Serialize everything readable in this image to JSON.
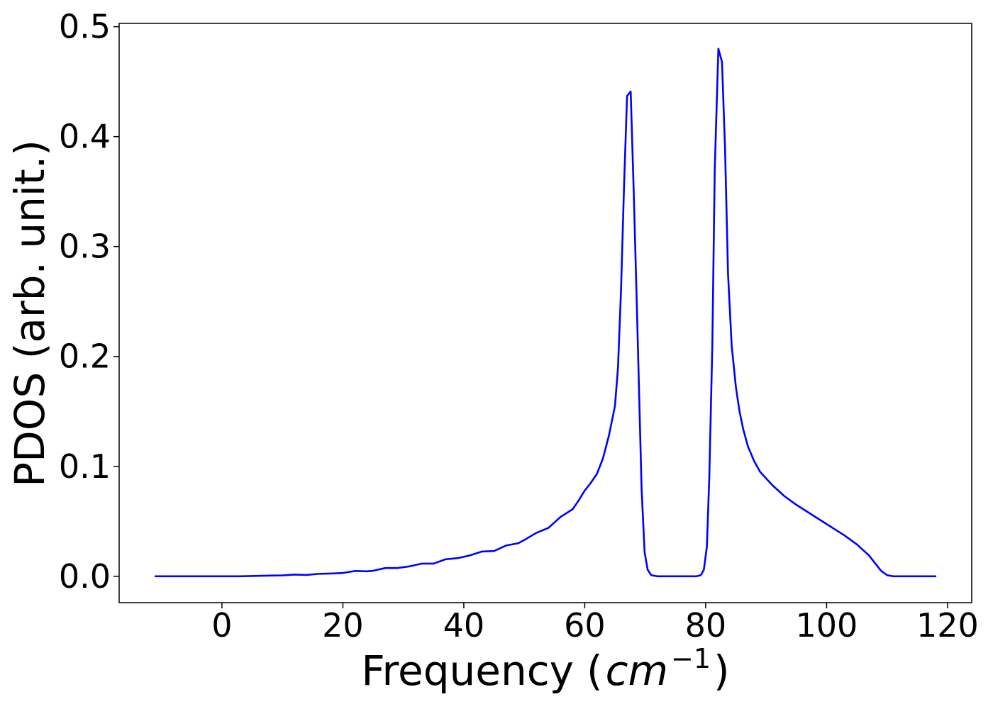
{
  "chart_data": {
    "type": "line",
    "title": "",
    "xlabel": "Frequency",
    "xlabel_unit": {
      "open": "(",
      "base": "cm",
      "superscript": "−1",
      "close": ")"
    },
    "ylabel": "PDOS (arb. unit.)",
    "xlim": [
      -17,
      124
    ],
    "ylim": [
      -0.024,
      0.503
    ],
    "xticks": [
      {
        "value": 0,
        "label": "0"
      },
      {
        "value": 20,
        "label": "20"
      },
      {
        "value": 40,
        "label": "40"
      },
      {
        "value": 60,
        "label": "60"
      },
      {
        "value": 80,
        "label": "80"
      },
      {
        "value": 100,
        "label": "100"
      },
      {
        "value": 120,
        "label": "120"
      }
    ],
    "yticks": [
      {
        "value": 0.0,
        "label": "0.0"
      },
      {
        "value": 0.1,
        "label": "0.1"
      },
      {
        "value": 0.2,
        "label": "0.2"
      },
      {
        "value": 0.3,
        "label": "0.3"
      },
      {
        "value": 0.4,
        "label": "0.4"
      },
      {
        "value": 0.5,
        "label": "0.5"
      }
    ],
    "grid": false,
    "legend": "none",
    "series": [
      {
        "color": "#0000ff",
        "points": [
          [
            -11,
            0.0
          ],
          [
            3,
            0.0
          ],
          [
            8,
            0.0006
          ],
          [
            10,
            0.0008
          ],
          [
            12,
            0.0015
          ],
          [
            14,
            0.0012
          ],
          [
            16,
            0.0022
          ],
          [
            18,
            0.0025
          ],
          [
            20,
            0.003
          ],
          [
            22,
            0.0048
          ],
          [
            24,
            0.0045
          ],
          [
            25,
            0.005
          ],
          [
            27,
            0.0075
          ],
          [
            29,
            0.0075
          ],
          [
            31,
            0.009
          ],
          [
            33,
            0.0115
          ],
          [
            35,
            0.0115
          ],
          [
            37,
            0.0155
          ],
          [
            39,
            0.0165
          ],
          [
            41,
            0.019
          ],
          [
            43,
            0.0225
          ],
          [
            45,
            0.023
          ],
          [
            47,
            0.028
          ],
          [
            49,
            0.03
          ],
          [
            50,
            0.033
          ],
          [
            52,
            0.0395
          ],
          [
            54,
            0.044
          ],
          [
            56,
            0.054
          ],
          [
            58,
            0.061
          ],
          [
            59,
            0.069
          ],
          [
            60,
            0.078
          ],
          [
            61,
            0.085
          ],
          [
            62,
            0.093
          ],
          [
            63,
            0.107
          ],
          [
            64,
            0.128
          ],
          [
            65,
            0.155
          ],
          [
            65.5,
            0.19
          ],
          [
            66,
            0.26
          ],
          [
            66.5,
            0.355
          ],
          [
            67,
            0.437
          ],
          [
            67.6,
            0.441
          ],
          [
            68.1,
            0.35
          ],
          [
            68.6,
            0.25
          ],
          [
            69,
            0.165
          ],
          [
            69.4,
            0.08
          ],
          [
            69.9,
            0.022
          ],
          [
            70.4,
            0.006
          ],
          [
            71,
            0.001
          ],
          [
            72,
            0.0
          ],
          [
            78.5,
            0.0
          ],
          [
            79.2,
            0.001
          ],
          [
            79.7,
            0.006
          ],
          [
            80.2,
            0.027
          ],
          [
            80.6,
            0.09
          ],
          [
            81.1,
            0.21
          ],
          [
            81.5,
            0.37
          ],
          [
            82.1,
            0.48
          ],
          [
            82.7,
            0.468
          ],
          [
            83.2,
            0.39
          ],
          [
            83.7,
            0.275
          ],
          [
            84.3,
            0.21
          ],
          [
            85,
            0.172
          ],
          [
            85.6,
            0.15
          ],
          [
            86.2,
            0.134
          ],
          [
            87,
            0.118
          ],
          [
            88,
            0.105
          ],
          [
            89,
            0.095
          ],
          [
            91,
            0.083
          ],
          [
            93,
            0.073
          ],
          [
            95,
            0.065
          ],
          [
            97,
            0.058
          ],
          [
            99,
            0.051
          ],
          [
            101,
            0.044
          ],
          [
            103,
            0.037
          ],
          [
            105,
            0.029
          ],
          [
            106,
            0.024
          ],
          [
            107,
            0.019
          ],
          [
            108,
            0.012
          ],
          [
            109,
            0.005
          ],
          [
            110,
            0.001
          ],
          [
            111,
            0.0
          ],
          [
            118,
            0.0
          ]
        ]
      }
    ]
  }
}
